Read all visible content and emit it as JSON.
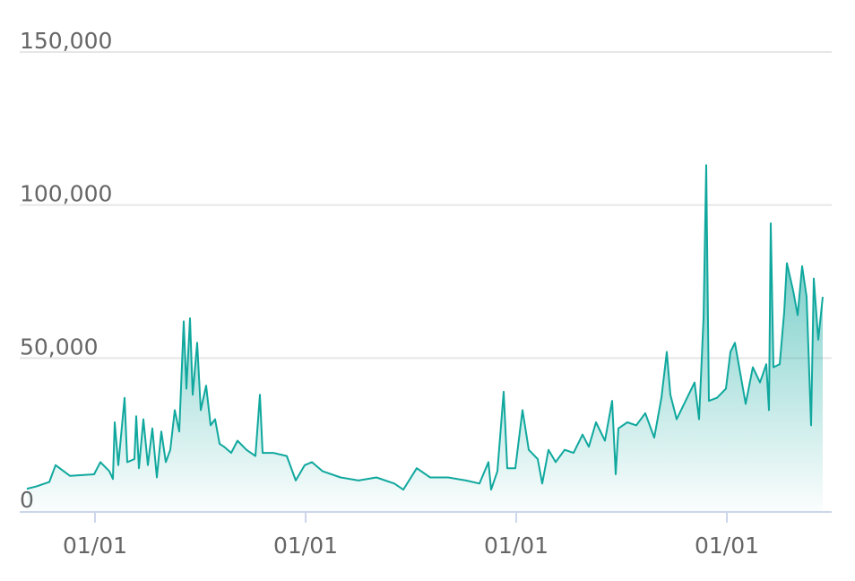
{
  "chart_data": {
    "type": "area",
    "color": "#10a89e",
    "grid": true,
    "x": [
      8,
      18,
      33,
      40,
      56,
      83,
      90,
      100,
      104,
      106,
      110,
      117,
      120,
      128,
      130,
      133,
      138,
      143,
      148,
      153,
      158,
      163,
      168,
      173,
      178,
      183,
      186,
      190,
      193,
      198,
      202,
      208,
      213,
      218,
      223,
      228,
      236,
      243,
      253,
      263,
      268,
      271,
      283,
      298,
      308,
      318,
      326,
      338,
      358,
      378,
      398,
      418,
      428,
      443,
      458,
      478,
      498,
      513,
      523,
      526,
      533,
      540,
      544,
      553,
      561,
      568,
      578,
      583,
      590,
      598,
      608,
      618,
      628,
      635,
      643,
      653,
      661,
      665,
      668,
      678,
      688,
      698,
      708,
      716,
      722,
      726,
      733,
      743,
      753,
      758,
      763,
      766,
      769,
      778,
      788,
      793,
      798,
      804,
      810,
      818,
      826,
      833,
      836,
      838,
      841,
      848,
      853,
      856,
      863,
      868,
      873,
      878,
      883,
      886,
      891,
      896
    ],
    "values": [
      7300,
      8000,
      9500,
      15000,
      11500,
      12000,
      16000,
      13000,
      10500,
      29000,
      15000,
      37000,
      16000,
      17000,
      31000,
      14000,
      30000,
      15000,
      27000,
      11000,
      26000,
      16000,
      20000,
      33000,
      26000,
      62000,
      40000,
      63000,
      38000,
      55000,
      33000,
      41000,
      28000,
      30000,
      22000,
      21000,
      19000,
      23000,
      20000,
      18000,
      38000,
      19000,
      19000,
      18000,
      10000,
      15000,
      16000,
      13000,
      11000,
      10000,
      11000,
      9000,
      7000,
      14000,
      11000,
      11000,
      10000,
      9000,
      16000,
      7000,
      13000,
      39000,
      14000,
      14000,
      33000,
      20000,
      17000,
      9000,
      20000,
      16000,
      20000,
      19000,
      25000,
      21000,
      29000,
      23000,
      36000,
      12000,
      27000,
      29000,
      28000,
      32000,
      24000,
      37000,
      52000,
      38000,
      30000,
      36000,
      42000,
      30000,
      63000,
      113000,
      36000,
      37000,
      40000,
      52000,
      55000,
      45000,
      35000,
      47000,
      42000,
      48000,
      33000,
      94000,
      47000,
      48000,
      65000,
      81000,
      72000,
      64000,
      80000,
      70000,
      28000,
      76000,
      56000,
      70000
    ],
    "xlim": [
      0,
      906
    ],
    "xticks": [
      {
        "value": 84,
        "label": "01/01"
      },
      {
        "value": 319,
        "label": "01/01"
      },
      {
        "value": 554,
        "label": "01/01"
      },
      {
        "value": 789,
        "label": "01/01"
      }
    ],
    "ylim": [
      0,
      150000
    ],
    "yticks": [
      0,
      {
        "value": 50000,
        "label": "50,000"
      },
      {
        "value": 100000,
        "label": "100,000"
      },
      {
        "value": 150000,
        "label": "150,000"
      }
    ]
  }
}
